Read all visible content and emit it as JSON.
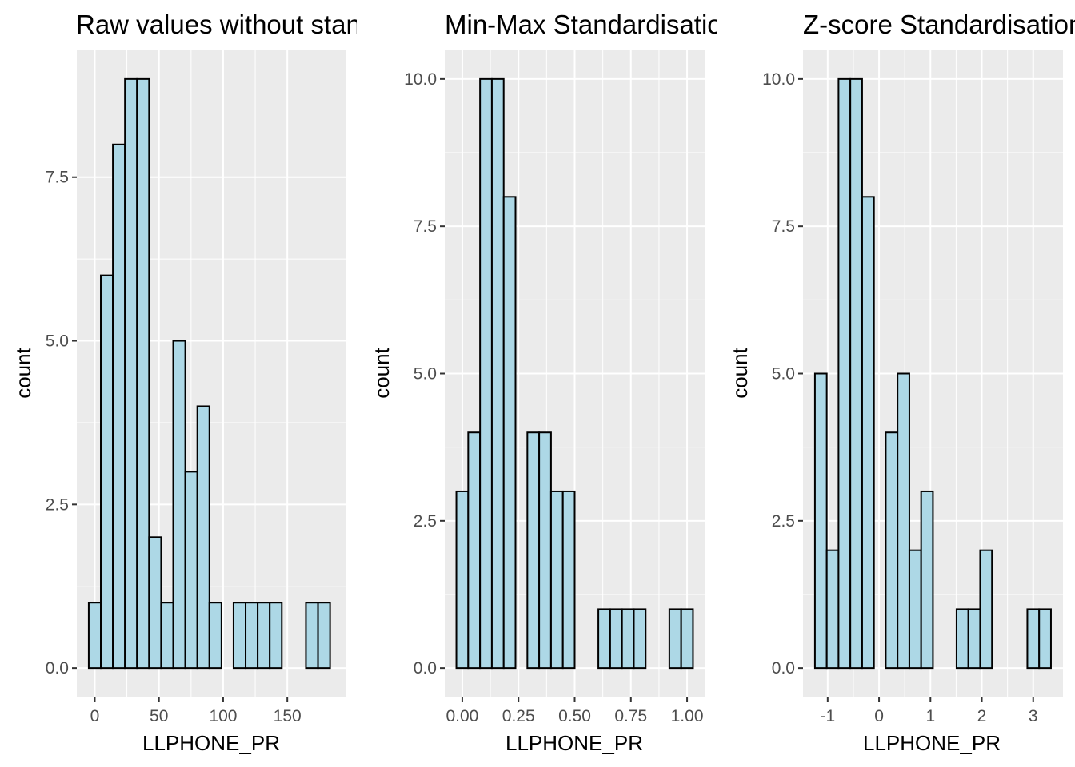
{
  "style": {
    "panel_background": "#ebebeb",
    "grid_color": "#ffffff",
    "bar_fill": "#add8e6",
    "bar_outline": "#000000"
  },
  "chart_data": [
    {
      "type": "bar",
      "title": "Raw values without standardisation",
      "xlabel": "LLPHONE_PR",
      "ylabel": "count",
      "xlim": [
        -14,
        196
      ],
      "ylim": [
        -0.45,
        9.45
      ],
      "xticks": [
        0,
        50,
        100,
        150
      ],
      "xtick_labels": [
        "0",
        "50",
        "100",
        "150"
      ],
      "yticks": [
        0,
        2.5,
        5,
        7.5
      ],
      "ytick_labels": [
        "0.0",
        "2.5",
        "5.0",
        "7.5"
      ],
      "grid": true,
      "bin_width": 9.4,
      "bin_centers": [
        0,
        9.4,
        18.8,
        28.2,
        37.6,
        47,
        56.4,
        65.8,
        75.2,
        84.6,
        94,
        103.4,
        112.8,
        122.2,
        131.6,
        141,
        150.4,
        159.8,
        169.2,
        178.6
      ],
      "values": [
        1,
        6,
        8,
        9,
        9,
        2,
        1,
        5,
        3,
        4,
        1,
        0,
        1,
        1,
        1,
        1,
        0,
        0,
        1,
        1
      ]
    },
    {
      "type": "bar",
      "title": "Min-Max Standardisation",
      "xlabel": "LLPHONE_PR",
      "ylabel": "count",
      "xlim": [
        -0.078,
        1.078
      ],
      "ylim": [
        -0.5,
        10.5
      ],
      "xticks": [
        0,
        0.25,
        0.5,
        0.75,
        1
      ],
      "xtick_labels": [
        "0.00",
        "0.25",
        "0.50",
        "0.75",
        "1.00"
      ],
      "yticks": [
        0,
        2.5,
        5,
        7.5,
        10
      ],
      "ytick_labels": [
        "0.0",
        "2.5",
        "5.0",
        "7.5",
        "10.0"
      ],
      "grid": true,
      "bin_width": 0.0526,
      "bin_centers": [
        0,
        0.0526,
        0.1053,
        0.1579,
        0.2105,
        0.2632,
        0.3158,
        0.3684,
        0.4211,
        0.4737,
        0.5263,
        0.5789,
        0.6316,
        0.6842,
        0.7368,
        0.7895,
        0.8421,
        0.8947,
        0.9474,
        1.0
      ],
      "values": [
        3,
        4,
        10,
        10,
        8,
        0,
        4,
        4,
        3,
        3,
        0,
        0,
        1,
        1,
        1,
        1,
        0,
        0,
        1,
        1
      ]
    },
    {
      "type": "bar",
      "title": "Z-score Standardisation",
      "xlabel": "LLPHONE_PR",
      "ylabel": "count",
      "xlim": [
        -1.48,
        3.58
      ],
      "ylim": [
        -0.5,
        10.5
      ],
      "xticks": [
        -1,
        0,
        1,
        2,
        3
      ],
      "xtick_labels": [
        "-1",
        "0",
        "1",
        "2",
        "3"
      ],
      "yticks": [
        0,
        2.5,
        5,
        7.5,
        10
      ],
      "ytick_labels": [
        "0.0",
        "2.5",
        "5.0",
        "7.5",
        "10.0"
      ],
      "grid": true,
      "bin_width": 0.2297,
      "bin_centers": [
        -1.133,
        -0.903,
        -0.674,
        -0.444,
        -0.214,
        0.015,
        0.245,
        0.475,
        0.705,
        0.934,
        1.164,
        1.394,
        1.623,
        1.853,
        2.083,
        2.312,
        2.542,
        2.772,
        3.001,
        3.231
      ],
      "values": [
        5,
        2,
        10,
        10,
        8,
        0,
        4,
        5,
        2,
        3,
        0,
        0,
        1,
        1,
        2,
        0,
        0,
        0,
        1,
        1
      ]
    }
  ]
}
